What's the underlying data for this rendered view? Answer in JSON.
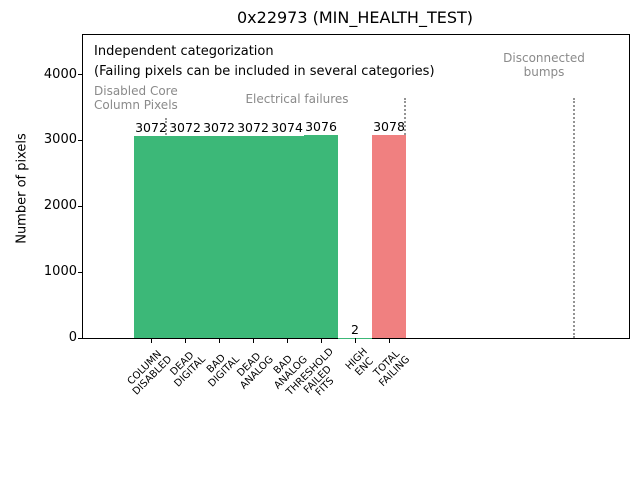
{
  "annotation": {
    "line1": "Independent categorization",
    "line2": "(Failing pixels can be included in several categories)"
  },
  "section_labels": {
    "disabled_core": "Disabled Core\nColumn Pixels",
    "electrical": "Electrical failures",
    "disconnected": "Disconnected\nbumps"
  },
  "colors": {
    "pass_green": "#3cb878",
    "fail_red": "#f08080",
    "section_label_gray": "#8a8a8a",
    "separator_gray": "#949494"
  },
  "chart_data": {
    "type": "bar",
    "title": "0x22973 (MIN_HEALTH_TEST)",
    "ylabel": "Number of pixels",
    "xlabel": "",
    "ylim": [
      0,
      4600
    ],
    "yticks": [
      0,
      1000,
      2000,
      3000,
      4000
    ],
    "grid": false,
    "legend": "none",
    "categories": [
      "COLUMN\nDISABLED",
      "DEAD\nDIGITAL",
      "BAD\nDIGITAL",
      "DEAD\nANALOG",
      "BAD\nANALOG",
      "THRESHOLD\nFAILED\nFITS",
      "HIGH\nENC",
      "TOTAL\nFAILING"
    ],
    "values": [
      3072,
      3072,
      3072,
      3072,
      3074,
      3076,
      2,
      3078
    ],
    "bar_value_labels": [
      "3072",
      "3072",
      "3072",
      "3072",
      "3074",
      "3076",
      "2",
      "3078"
    ],
    "bar_colors": [
      "#3cb878",
      "#3cb878",
      "#3cb878",
      "#3cb878",
      "#3cb878",
      "#3cb878",
      "#3cb878",
      "#f08080"
    ],
    "groups": [
      {
        "label": "Disabled Core\nColumn Pixels",
        "categories": [
          "COLUMN\nDISABLED"
        ]
      },
      {
        "label": "Electrical failures",
        "categories": [
          "DEAD\nDIGITAL",
          "BAD\nDIGITAL",
          "DEAD\nANALOG",
          "BAD\nANALOG",
          "THRESHOLD\nFAILED\nFITS",
          "HIGH\nENC",
          "TOTAL\nFAILING"
        ]
      },
      {
        "label": "Disconnected\nbumps",
        "categories": []
      }
    ]
  }
}
